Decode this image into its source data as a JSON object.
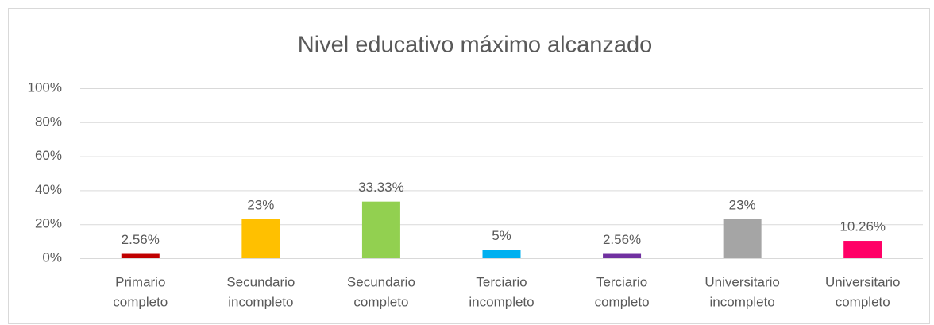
{
  "chart_data": {
    "type": "bar",
    "title": "Nivel educativo máximo alcanzado",
    "categories": [
      [
        "Primario",
        "completo"
      ],
      [
        "Secundario",
        "incompleto"
      ],
      [
        "Secundario",
        "completo"
      ],
      [
        "Terciario",
        "incompleto"
      ],
      [
        "Terciario",
        "completo"
      ],
      [
        "Universitario",
        "incompleto"
      ],
      [
        "Universitario",
        "completo"
      ]
    ],
    "values": [
      2.56,
      23,
      33.33,
      5,
      2.56,
      23,
      10.26
    ],
    "value_labels": [
      "2.56%",
      "23%",
      "33.33%",
      "5%",
      "2.56%",
      "23%",
      "10.26%"
    ],
    "colors": [
      "#c00000",
      "#ffc000",
      "#92d050",
      "#00b0f0",
      "#7030a0",
      "#a5a5a5",
      "#ff0066"
    ],
    "ylim": [
      0,
      100
    ],
    "yticks": [
      {
        "value": 0,
        "label": "0%"
      },
      {
        "value": 20,
        "label": "20%"
      },
      {
        "value": 40,
        "label": "40%"
      },
      {
        "value": 60,
        "label": "60%"
      },
      {
        "value": 80,
        "label": "80%"
      },
      {
        "value": 100,
        "label": "100%"
      }
    ],
    "grid": true
  }
}
